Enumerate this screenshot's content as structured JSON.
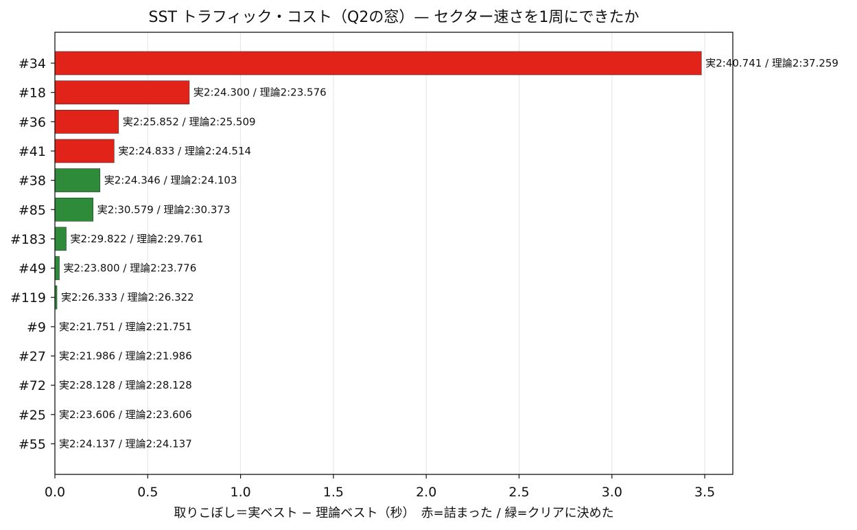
{
  "chart_data": {
    "type": "bar",
    "orientation": "horizontal",
    "title": "SST トラフィック・コスト（Q2の窓）— セクター速さを1周にできたか",
    "xlabel": "取りこぼし＝実ベスト − 理論ベスト（秒）　赤=詰まった / 緑=クリアに決めた",
    "ylabel": "",
    "xlim": [
      0,
      3.65
    ],
    "xticks": [
      "0.0",
      "0.5",
      "1.0",
      "1.5",
      "2.0",
      "2.5",
      "3.0",
      "3.5"
    ],
    "grid": "vertical",
    "legend": "none",
    "colors": {
      "jammed": "#e2231a",
      "clear": "#2e8b3a"
    },
    "bars": [
      {
        "category": "#34",
        "value": 3.482,
        "color": "jammed",
        "label": "実2:40.741 / 理論2:37.259"
      },
      {
        "category": "#18",
        "value": 0.724,
        "color": "jammed",
        "label": "実2:24.300 / 理論2:23.576"
      },
      {
        "category": "#36",
        "value": 0.343,
        "color": "jammed",
        "label": "実2:25.852 / 理論2:25.509"
      },
      {
        "category": "#41",
        "value": 0.319,
        "color": "jammed",
        "label": "実2:24.833 / 理論2:24.514"
      },
      {
        "category": "#38",
        "value": 0.243,
        "color": "clear",
        "label": "実2:24.346 / 理論2:24.103"
      },
      {
        "category": "#85",
        "value": 0.206,
        "color": "clear",
        "label": "実2:30.579 / 理論2:30.373"
      },
      {
        "category": "#183",
        "value": 0.061,
        "color": "clear",
        "label": "実2:29.822 / 理論2:29.761"
      },
      {
        "category": "#49",
        "value": 0.024,
        "color": "clear",
        "label": "実2:23.800 / 理論2:23.776"
      },
      {
        "category": "#119",
        "value": 0.011,
        "color": "clear",
        "label": "実2:26.333 / 理論2:26.322"
      },
      {
        "category": "#9",
        "value": 0.0,
        "color": "clear",
        "label": "実2:21.751 / 理論2:21.751"
      },
      {
        "category": "#27",
        "value": 0.0,
        "color": "clear",
        "label": "実2:21.986 / 理論2:21.986"
      },
      {
        "category": "#72",
        "value": 0.0,
        "color": "clear",
        "label": "実2:28.128 / 理論2:28.128"
      },
      {
        "category": "#25",
        "value": 0.0,
        "color": "clear",
        "label": "実2:23.606 / 理論2:23.606"
      },
      {
        "category": "#55",
        "value": 0.0,
        "color": "clear",
        "label": "実2:24.137 / 理論2:24.137"
      }
    ]
  }
}
